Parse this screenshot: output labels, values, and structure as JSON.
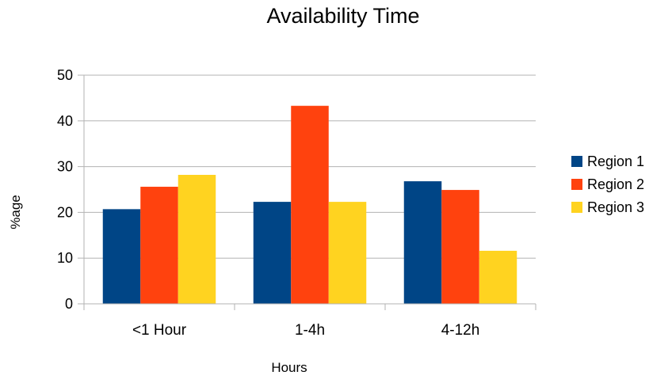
{
  "chart_data": {
    "type": "bar",
    "title": "Availability Time",
    "xlabel": "Hours",
    "ylabel": "%age",
    "categories": [
      "<1 Hour",
      "1-4h",
      "4-12h"
    ],
    "series": [
      {
        "name": "Region 1",
        "color": "#004586",
        "values": [
          20.7,
          22.3,
          26.8
        ]
      },
      {
        "name": "Region 2",
        "color": "#ff420e",
        "values": [
          25.6,
          43.3,
          24.9
        ]
      },
      {
        "name": "Region 3",
        "color": "#ffd320",
        "values": [
          28.2,
          22.3,
          11.6
        ]
      }
    ],
    "ylim": [
      0,
      50
    ],
    "yticks": [
      0,
      10,
      20,
      30,
      40,
      50
    ],
    "grid": true,
    "legend": "right"
  }
}
